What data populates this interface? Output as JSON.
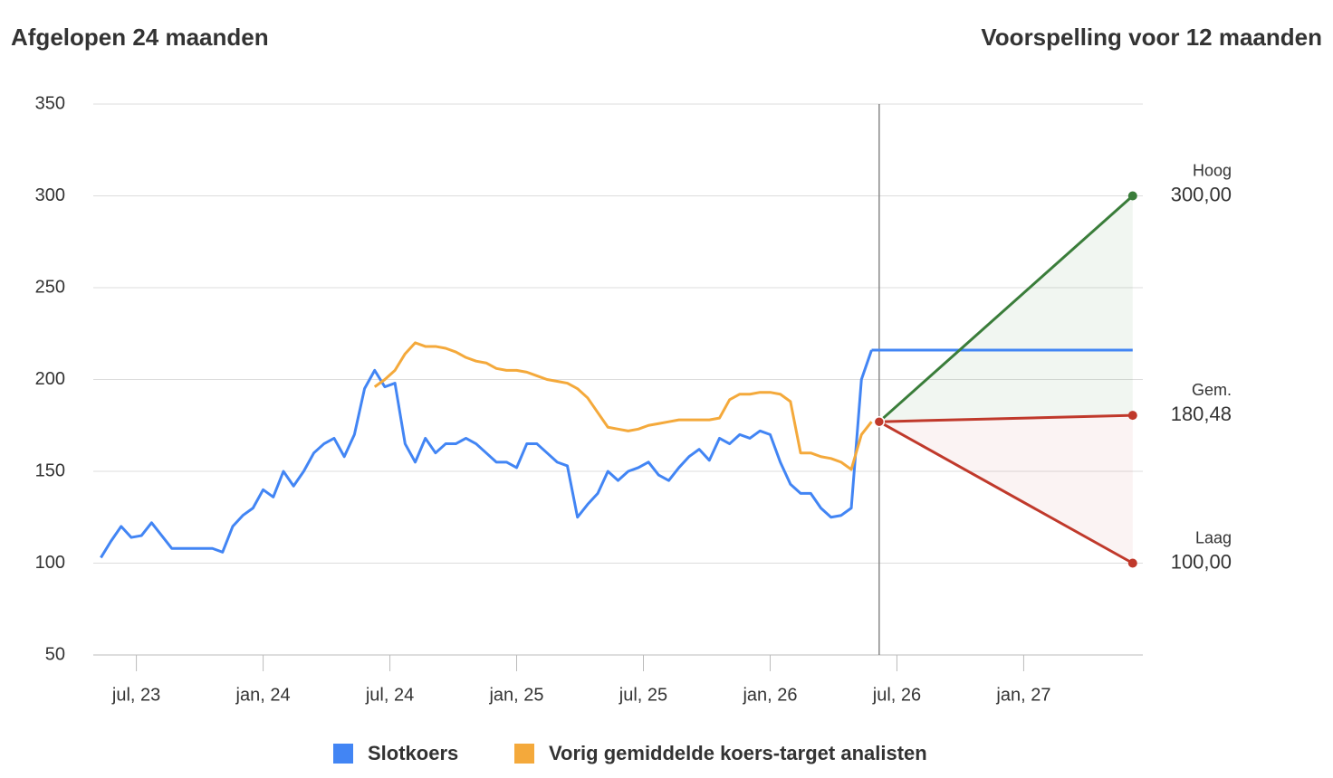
{
  "chart_data": {
    "type": "line",
    "title": "Afgelopen 24 maanden",
    "forecast_title": "Voorspelling voor 12 maanden",
    "x": [
      2023.36,
      2023.4,
      2023.44,
      2023.48,
      2023.52,
      2023.56,
      2023.6,
      2023.64,
      2023.68,
      2023.72,
      2023.76,
      2023.8,
      2023.84,
      2023.88,
      2023.92,
      2023.96,
      2024,
      2024.04,
      2024.08,
      2024.12,
      2024.16,
      2024.2,
      2024.24,
      2024.28,
      2024.32,
      2024.36,
      2024.4,
      2024.44,
      2024.48,
      2024.52,
      2024.56,
      2024.6,
      2024.64,
      2024.68,
      2024.72,
      2024.76,
      2024.8,
      2024.84,
      2024.88,
      2024.92,
      2024.96,
      2025,
      2025.04,
      2025.08,
      2025.12,
      2025.16,
      2025.2,
      2025.24,
      2025.28,
      2025.32,
      2025.36,
      2025.4,
      2025.44,
      2025.48,
      2025.52,
      2025.56,
      2025.6,
      2025.64,
      2025.68,
      2025.72,
      2025.76,
      2025.8,
      2025.84,
      2025.88,
      2025.92,
      2025.96,
      2026,
      2026.04,
      2026.08,
      2026.12,
      2026.16,
      2026.2,
      2026.24,
      2026.28,
      2026.32,
      2026.36,
      2026.4
    ],
    "series": [
      {
        "name": "Slotkoers",
        "color": "#4285f4",
        "values": [
          103,
          112,
          120,
          114,
          115,
          122,
          115,
          108,
          108,
          108,
          108,
          108,
          106,
          120,
          126,
          130,
          140,
          136,
          150,
          142,
          150,
          160,
          165,
          168,
          158,
          170,
          195,
          205,
          196,
          198,
          165,
          155,
          168,
          160,
          165,
          165,
          168,
          165,
          160,
          155,
          155,
          152,
          165,
          165,
          160,
          155,
          153,
          125,
          132,
          138,
          150,
          145,
          150,
          152,
          155,
          148,
          145,
          152,
          158,
          162,
          156,
          168,
          165,
          170,
          168,
          172,
          170,
          155,
          143,
          138,
          138,
          130,
          125,
          126,
          130,
          200,
          216
        ]
      },
      {
        "name": "Vorig gemiddelde koers-target analisten",
        "color": "#f4a93b",
        "values": [
          null,
          null,
          null,
          null,
          null,
          null,
          null,
          null,
          null,
          null,
          null,
          null,
          null,
          null,
          null,
          null,
          null,
          null,
          null,
          null,
          null,
          null,
          null,
          null,
          null,
          null,
          null,
          196,
          200,
          205,
          214,
          220,
          218,
          218,
          217,
          215,
          212,
          210,
          209,
          206,
          205,
          205,
          204,
          202,
          200,
          199,
          198,
          195,
          190,
          182,
          174,
          173,
          172,
          173,
          175,
          176,
          177,
          178,
          178,
          178,
          178,
          179,
          189,
          192,
          192,
          193,
          193,
          192,
          188,
          160,
          160,
          158,
          157,
          155,
          151,
          170,
          177
        ]
      }
    ],
    "forecast": {
      "start": {
        "x": 2026.43,
        "value": 177
      },
      "end_x": 2027.43,
      "targets": [
        {
          "name": "Hoog",
          "value": 300,
          "value_label": "300,00",
          "color": "#3a7d3a"
        },
        {
          "name": "Gem.",
          "value": 180.48,
          "value_label": "180,48",
          "color": "#c0392b"
        },
        {
          "name": "Laag",
          "value": 100,
          "value_label": "100,00",
          "color": "#c0392b"
        }
      ]
    },
    "xlim": [
      2023.33,
      2027.47
    ],
    "xticks": [
      {
        "value": 2023.5,
        "label": "jul, 23"
      },
      {
        "value": 2024,
        "label": "jan, 24"
      },
      {
        "value": 2024.5,
        "label": "jul, 24"
      },
      {
        "value": 2025,
        "label": "jan, 25"
      },
      {
        "value": 2025.5,
        "label": "jul, 25"
      },
      {
        "value": 2026,
        "label": "jan, 26"
      },
      {
        "value": 2026.5,
        "label": "jul, 26"
      },
      {
        "value": 2027,
        "label": "jan, 27"
      }
    ],
    "ylim": [
      50,
      350
    ],
    "yticks": [
      50,
      100,
      150,
      200,
      250,
      300,
      350
    ],
    "grid": true
  }
}
